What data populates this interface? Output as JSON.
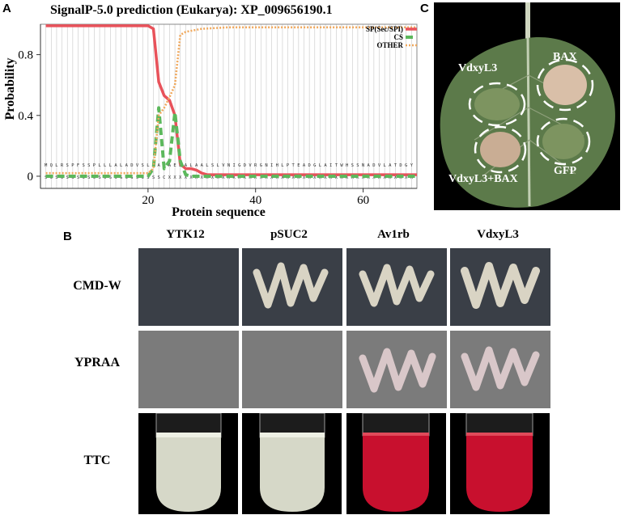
{
  "panels": {
    "a": "A",
    "b": "B",
    "c": "C"
  },
  "chart_data": {
    "type": "line",
    "title": "SignalP-5.0 prediction (Eukarya):  XP_009656190.1",
    "xlabel": "Protein sequence",
    "ylabel": "Probability",
    "xlim": [
      0,
      70
    ],
    "ylim": [
      -0.08,
      1.0
    ],
    "xticks": [
      20,
      40,
      60
    ],
    "yticks": [
      0,
      0.4,
      0.8
    ],
    "ytick_labels": [
      "0",
      "0.4",
      "0.8"
    ],
    "legend": [
      "SP(Sec/SPI)",
      "CS",
      "OTHER"
    ],
    "legend_position": "top-right",
    "sequence": "MQLRSPFSSPLLLALADVSLAARAEEALAALSLVNIGDVRGNIHLPTEADGLAITWHSSNADVLATDGY",
    "sequence_labels": "SSSSSSSSSSSSSSSSSSSSSSCXXXXXXXXXXXXXXXXXXXXXXXXXXXXXXXXXXXXXXXXXXXXXXXX",
    "series": [
      {
        "name": "SP(Sec/SPI)",
        "color": "#e8525a",
        "x": [
          1,
          20,
          21,
          22,
          23,
          24,
          25,
          26,
          27,
          28,
          29,
          30,
          31,
          35,
          70
        ],
        "y": [
          0.99,
          0.99,
          0.97,
          0.62,
          0.53,
          0.5,
          0.4,
          0.08,
          0.05,
          0.05,
          0.04,
          0.02,
          0.01,
          0.01,
          0.01
        ]
      },
      {
        "name": "CS",
        "color": "#5cb85c",
        "x": [
          1,
          20,
          21,
          22,
          23,
          24,
          25,
          26,
          27,
          28,
          70
        ],
        "y": [
          0.0,
          0.0,
          0.05,
          0.45,
          0.05,
          0.1,
          0.42,
          0.1,
          0.01,
          0.0,
          0.0
        ]
      },
      {
        "name": "OTHER",
        "color": "#f0a85c",
        "x": [
          1,
          20,
          21,
          22,
          23,
          24,
          25,
          26,
          27,
          30,
          35,
          70
        ],
        "y": [
          0.02,
          0.02,
          0.05,
          0.4,
          0.45,
          0.52,
          0.6,
          0.93,
          0.95,
          0.97,
          0.98,
          0.98
        ]
      }
    ]
  },
  "yeast": {
    "columns": [
      "YTK12",
      "pSUC2",
      "Av1rb",
      "VdxyL3"
    ],
    "rows": [
      "CMD-W",
      "YPRAA",
      "TTC"
    ],
    "colors": {
      "plate_dark": "#3a3f47",
      "plate_grey": "#7b7b7b",
      "growth": "#d9d4c4",
      "pink_growth": "#d9c7c9",
      "ttc_red": "#c8102e",
      "ttc_white": "#d6d8c8"
    }
  },
  "leaf": {
    "labels": [
      "VdxyL3",
      "BAX",
      "VdxyL3+BAX",
      "GFP"
    ],
    "colors": {
      "leaf": "#5c7a4a",
      "background": "#000000",
      "necrosis": "#d9bfa8"
    }
  }
}
